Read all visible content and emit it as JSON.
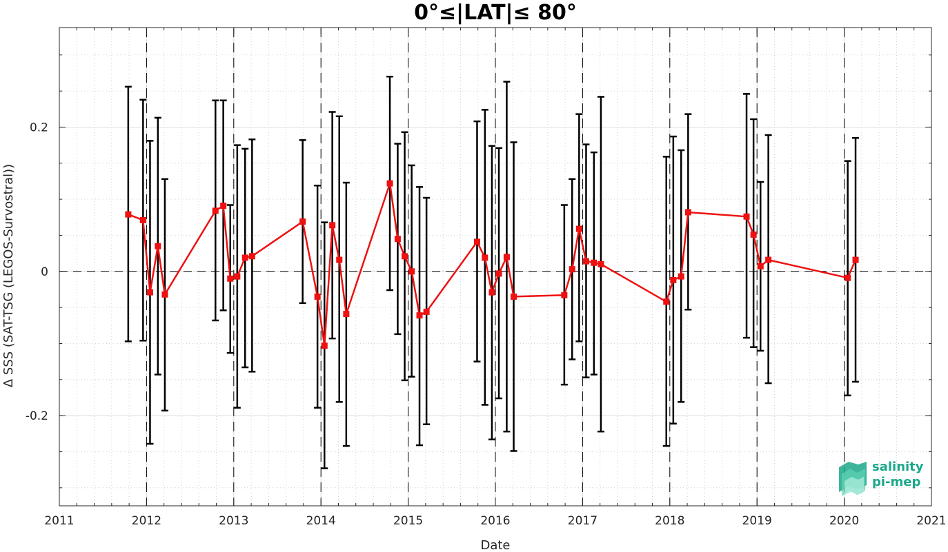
{
  "chart_data": {
    "type": "line",
    "title": "0°≤|LAT|≤ 80°",
    "xlabel": "Date",
    "ylabel": "Δ SSS (SAT-TSG (LEGOS-Survostral))",
    "xlim": [
      2011,
      2021
    ],
    "ylim": [
      -0.325,
      0.338
    ],
    "x_ticks": [
      2011,
      2012,
      2013,
      2014,
      2015,
      2016,
      2017,
      2018,
      2019,
      2020,
      2021
    ],
    "x_tick_labels": [
      "2011",
      "2012",
      "2013",
      "2014",
      "2015",
      "2016",
      "2017",
      "2018",
      "2019",
      "2020",
      "2021"
    ],
    "y_ticks": [
      -0.2,
      0,
      0.2
    ],
    "y_tick_labels": [
      "-0.2",
      "0",
      "0.2"
    ],
    "grid": true,
    "zero_line": "dashed",
    "year_boundaries": "dashed vertical lines",
    "line_color": "#ee1111",
    "errorbar_color": "#000000",
    "series": [
      {
        "x": [
          2011.79,
          2011.96,
          2012.04,
          2012.13,
          2012.21,
          2012.79,
          2012.88,
          2012.96,
          2013.04,
          2013.13,
          2013.21,
          2013.79,
          2013.96,
          2014.04,
          2014.13,
          2014.21,
          2014.29,
          2014.79,
          2014.88,
          2014.96,
          2015.04,
          2015.13,
          2015.21,
          2015.79,
          2015.88,
          2015.96,
          2016.04,
          2016.13,
          2016.21,
          2016.79,
          2016.88,
          2016.96,
          2017.04,
          2017.13,
          2017.21,
          2017.96,
          2018.04,
          2018.13,
          2018.21,
          2018.88,
          2018.96,
          2019.04,
          2019.13,
          2020.04,
          2020.13
        ],
        "y": [
          0.079,
          0.071,
          -0.029,
          0.035,
          -0.032,
          0.084,
          0.091,
          -0.01,
          -0.007,
          0.019,
          0.021,
          0.069,
          -0.035,
          -0.103,
          0.064,
          0.016,
          -0.059,
          0.122,
          0.045,
          0.021,
          0.0,
          -0.061,
          -0.056,
          0.041,
          0.019,
          -0.029,
          -0.003,
          0.02,
          -0.035,
          -0.033,
          0.003,
          0.059,
          0.014,
          0.012,
          0.01,
          -0.042,
          -0.012,
          -0.007,
          0.082,
          0.076,
          0.051,
          0.007,
          0.016,
          -0.009,
          0.016
        ],
        "err_upper": [
          0.256,
          0.238,
          0.181,
          0.213,
          0.128,
          0.237,
          0.237,
          0.092,
          0.175,
          0.17,
          0.183,
          0.182,
          0.119,
          0.068,
          0.221,
          0.215,
          0.123,
          0.27,
          0.177,
          0.193,
          0.147,
          0.117,
          0.102,
          0.208,
          0.224,
          0.174,
          0.171,
          0.263,
          0.179,
          0.092,
          0.128,
          0.218,
          0.176,
          0.165,
          0.242,
          0.159,
          0.187,
          0.168,
          0.218,
          0.246,
          0.211,
          0.124,
          0.189,
          0.153,
          0.185
        ],
        "err_lower": [
          -0.097,
          -0.096,
          -0.239,
          -0.143,
          -0.193,
          -0.068,
          -0.054,
          -0.113,
          -0.189,
          -0.133,
          -0.139,
          -0.044,
          -0.189,
          -0.273,
          -0.093,
          -0.181,
          -0.242,
          -0.026,
          -0.087,
          -0.151,
          -0.146,
          -0.241,
          -0.212,
          -0.125,
          -0.185,
          -0.233,
          -0.176,
          -0.222,
          -0.249,
          -0.157,
          -0.122,
          -0.097,
          -0.147,
          -0.143,
          -0.222,
          -0.242,
          -0.211,
          -0.181,
          -0.053,
          -0.092,
          -0.105,
          -0.11,
          -0.155,
          -0.172,
          -0.153
        ]
      }
    ]
  },
  "logo": {
    "line1": "salinity",
    "line2": "pi-mep",
    "color": "#1aa88a"
  }
}
